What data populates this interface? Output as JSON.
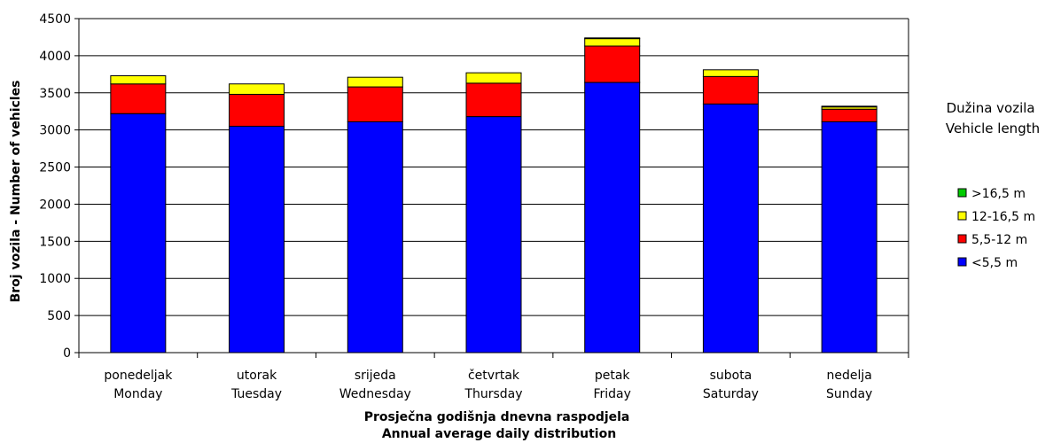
{
  "chart_data": {
    "type": "bar",
    "stacked": true,
    "title": "",
    "categories": [
      [
        "ponedeljak",
        "Monday"
      ],
      [
        "utorak",
        "Tuesday"
      ],
      [
        "srijeda",
        "Wednesday"
      ],
      [
        "četvrtak",
        "Thursday"
      ],
      [
        "petak",
        "Friday"
      ],
      [
        "subota",
        "Saturday"
      ],
      [
        "nedelja",
        "Sunday"
      ]
    ],
    "series": [
      {
        "name": "<5,5 m",
        "color": "#0000FF",
        "values": [
          3220,
          3050,
          3110,
          3180,
          3640,
          3350,
          3110
        ]
      },
      {
        "name": "5,5-12 m",
        "color": "#FF0000",
        "values": [
          400,
          430,
          470,
          450,
          490,
          370,
          170
        ]
      },
      {
        "name": "12-16,5 m",
        "color": "#FFFF00",
        "values": [
          110,
          140,
          130,
          140,
          100,
          90,
          30
        ]
      },
      {
        "name": ">16,5 m",
        "color": "#00CC00",
        "values": [
          0,
          0,
          0,
          0,
          10,
          0,
          10
        ]
      }
    ],
    "xlabel": [
      "Prosječna godišnja dnevna raspodjela",
      "Annual average daily distribution"
    ],
    "ylabel": "Broj vozila - Number of vehicles",
    "ylim": [
      0,
      4500
    ],
    "yticks": [
      0,
      500,
      1000,
      1500,
      2000,
      2500,
      3000,
      3500,
      4000,
      4500
    ],
    "grid": true,
    "legend": {
      "title": [
        "Dužina vozila",
        "Vehicle length"
      ],
      "position": "right",
      "order": [
        ">16,5 m",
        "12-16,5 m",
        "5,5-12 m",
        "<5,5 m"
      ]
    }
  }
}
